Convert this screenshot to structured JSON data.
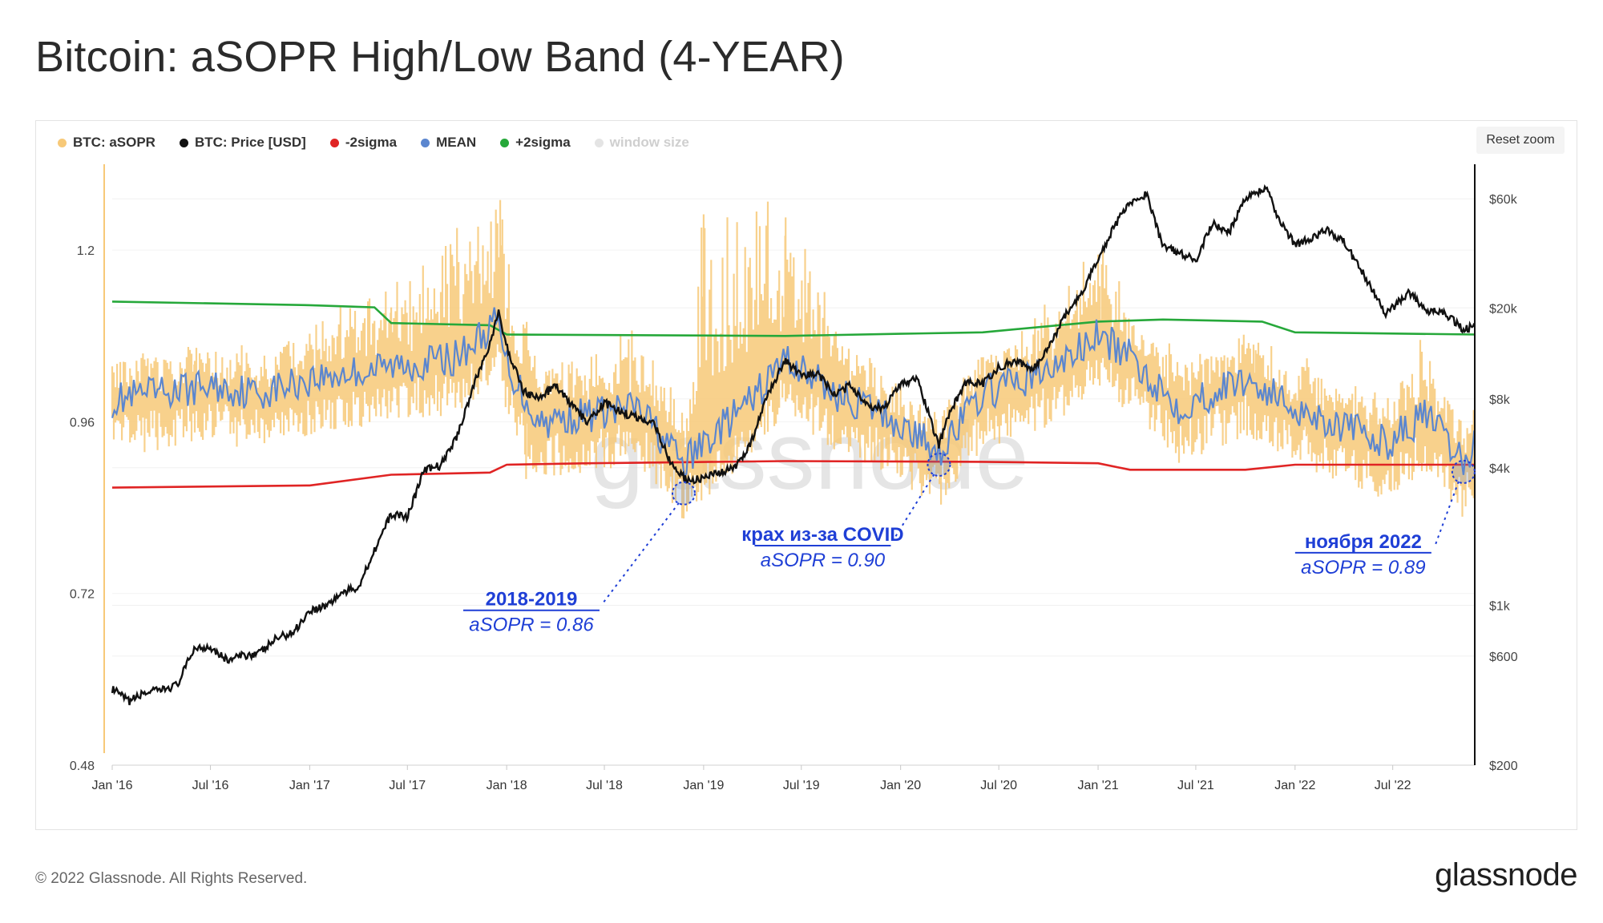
{
  "title": "Bitcoin: aSOPR High/Low Band (4-YEAR)",
  "toolbar": {
    "reset_zoom": "Reset zoom"
  },
  "legend": [
    {
      "label": "BTC: aSOPR",
      "color": "#f7c978",
      "enabled": true
    },
    {
      "label": "BTC: Price [USD]",
      "color": "#111111",
      "enabled": true
    },
    {
      "label": "-2sigma",
      "color": "#e02424",
      "enabled": true
    },
    {
      "label": "MEAN",
      "color": "#5b86cf",
      "enabled": true
    },
    {
      "label": "+2sigma",
      "color": "#26a83a",
      "enabled": true
    },
    {
      "label": "window size",
      "color": "#e4e4e4",
      "enabled": false
    }
  ],
  "watermark": "glassnode",
  "footer": {
    "copyright": "© 2022 Glassnode. All Rights Reserved.",
    "brand": "glassnode"
  },
  "chart_data": {
    "type": "line",
    "title": "Bitcoin: aSOPR High/Low Band (4-YEAR)",
    "x_ticks": [
      "Jan '16",
      "Jul '16",
      "Jan '17",
      "Jul '17",
      "Jan '18",
      "Jul '18",
      "Jan '19",
      "Jul '19",
      "Jan '20",
      "Jul '20",
      "Jan '21",
      "Jul '21",
      "Jan '22",
      "Jul '22"
    ],
    "x_tick_dates": [
      "2016-01-01",
      "2016-07-01",
      "2017-01-01",
      "2017-07-01",
      "2018-01-01",
      "2018-07-01",
      "2019-01-01",
      "2019-07-01",
      "2020-01-01",
      "2020-07-01",
      "2021-01-01",
      "2021-07-01",
      "2022-01-01",
      "2022-07-01"
    ],
    "x_range": [
      "2016-01-01",
      "2022-11-30"
    ],
    "left_axis": {
      "label": "aSOPR",
      "scale": "linear",
      "range": [
        0.48,
        1.32
      ],
      "ticks": [
        0.48,
        0.72,
        0.96,
        1.2
      ],
      "tick_labels": [
        "0.48",
        "0.72",
        "0.96",
        "1.2"
      ]
    },
    "right_axis": {
      "label": "Price [USD]",
      "scale": "log",
      "range": [
        200,
        85000
      ],
      "ticks": [
        200,
        600,
        1000,
        4000,
        8000,
        20000,
        60000
      ],
      "tick_labels": [
        "$200",
        "$600",
        "$1k",
        "$4k",
        "$8k",
        "$20k",
        "$60k"
      ]
    },
    "grid": true,
    "legend_position": "top-left",
    "series": [
      {
        "name": "BTC: Price [USD]",
        "axis": "right",
        "color": "#111111",
        "points": [
          [
            "2016-01-01",
            430
          ],
          [
            "2016-02-01",
            380
          ],
          [
            "2016-03-01",
            415
          ],
          [
            "2016-04-01",
            425
          ],
          [
            "2016-05-01",
            450
          ],
          [
            "2016-06-01",
            650
          ],
          [
            "2016-07-01",
            660
          ],
          [
            "2016-08-01",
            575
          ],
          [
            "2016-09-01",
            605
          ],
          [
            "2016-10-01",
            620
          ],
          [
            "2016-11-01",
            720
          ],
          [
            "2016-12-01",
            760
          ],
          [
            "2017-01-01",
            950
          ],
          [
            "2017-02-01",
            1000
          ],
          [
            "2017-03-01",
            1130
          ],
          [
            "2017-04-01",
            1200
          ],
          [
            "2017-05-01",
            1750
          ],
          [
            "2017-06-01",
            2500
          ],
          [
            "2017-07-01",
            2450
          ],
          [
            "2017-08-01",
            3900
          ],
          [
            "2017-09-01",
            4100
          ],
          [
            "2017-10-01",
            5500
          ],
          [
            "2017-11-01",
            9200
          ],
          [
            "2017-12-01",
            14000
          ],
          [
            "2017-12-17",
            19000
          ],
          [
            "2018-01-01",
            13500
          ],
          [
            "2018-02-01",
            8700
          ],
          [
            "2018-03-01",
            8000
          ],
          [
            "2018-04-01",
            9200
          ],
          [
            "2018-05-01",
            7500
          ],
          [
            "2018-06-01",
            6300
          ],
          [
            "2018-07-01",
            7700
          ],
          [
            "2018-08-01",
            7000
          ],
          [
            "2018-09-01",
            6600
          ],
          [
            "2018-10-01",
            6300
          ],
          [
            "2018-11-01",
            4200
          ],
          [
            "2018-12-01",
            3500
          ],
          [
            "2019-01-01",
            3600
          ],
          [
            "2019-02-01",
            3800
          ],
          [
            "2019-03-01",
            4000
          ],
          [
            "2019-04-01",
            5300
          ],
          [
            "2019-05-01",
            8500
          ],
          [
            "2019-06-01",
            11800
          ],
          [
            "2019-07-01",
            10000
          ],
          [
            "2019-08-01",
            10400
          ],
          [
            "2019-09-01",
            8300
          ],
          [
            "2019-10-01",
            9200
          ],
          [
            "2019-11-01",
            7500
          ],
          [
            "2019-12-01",
            7200
          ],
          [
            "2020-01-01",
            9400
          ],
          [
            "2020-02-01",
            9800
          ],
          [
            "2020-03-12",
            5000
          ],
          [
            "2020-04-01",
            7000
          ],
          [
            "2020-05-01",
            9400
          ],
          [
            "2020-06-01",
            9300
          ],
          [
            "2020-07-01",
            11000
          ],
          [
            "2020-08-01",
            11800
          ],
          [
            "2020-09-01",
            10700
          ],
          [
            "2020-10-01",
            13500
          ],
          [
            "2020-11-01",
            18500
          ],
          [
            "2020-12-01",
            23000
          ],
          [
            "2021-01-01",
            33000
          ],
          [
            "2021-02-01",
            46000
          ],
          [
            "2021-03-01",
            58000
          ],
          [
            "2021-04-01",
            63000
          ],
          [
            "2021-05-01",
            37000
          ],
          [
            "2021-06-01",
            35000
          ],
          [
            "2021-07-01",
            32000
          ],
          [
            "2021-08-01",
            47000
          ],
          [
            "2021-09-01",
            43000
          ],
          [
            "2021-10-01",
            61000
          ],
          [
            "2021-11-10",
            67000
          ],
          [
            "2021-12-01",
            49000
          ],
          [
            "2022-01-01",
            38000
          ],
          [
            "2022-02-01",
            40000
          ],
          [
            "2022-03-01",
            44000
          ],
          [
            "2022-04-01",
            39000
          ],
          [
            "2022-05-01",
            30000
          ],
          [
            "2022-06-18",
            19000
          ],
          [
            "2022-07-01",
            20000
          ],
          [
            "2022-08-01",
            23500
          ],
          [
            "2022-09-01",
            19500
          ],
          [
            "2022-10-01",
            19500
          ],
          [
            "2022-11-09",
            16000
          ],
          [
            "2022-11-30",
            16800
          ]
        ]
      },
      {
        "name": "+2sigma",
        "axis": "left",
        "color": "#26a83a",
        "points": [
          [
            "2016-01-01",
            1.128
          ],
          [
            "2017-01-01",
            1.123
          ],
          [
            "2017-05-01",
            1.12
          ],
          [
            "2017-06-01",
            1.098
          ],
          [
            "2017-12-01",
            1.095
          ],
          [
            "2018-01-01",
            1.082
          ],
          [
            "2019-06-01",
            1.08
          ],
          [
            "2020-01-01",
            1.083
          ],
          [
            "2020-06-01",
            1.085
          ],
          [
            "2021-01-01",
            1.1
          ],
          [
            "2021-05-01",
            1.103
          ],
          [
            "2021-11-01",
            1.1
          ],
          [
            "2022-01-01",
            1.085
          ],
          [
            "2022-11-30",
            1.082
          ]
        ]
      },
      {
        "name": "-2sigma",
        "axis": "left",
        "color": "#e02424",
        "points": [
          [
            "2016-01-01",
            0.868
          ],
          [
            "2017-01-01",
            0.871
          ],
          [
            "2017-06-01",
            0.886
          ],
          [
            "2017-12-01",
            0.889
          ],
          [
            "2018-01-01",
            0.9
          ],
          [
            "2018-06-01",
            0.902
          ],
          [
            "2019-06-01",
            0.905
          ],
          [
            "2020-06-01",
            0.904
          ],
          [
            "2021-01-01",
            0.902
          ],
          [
            "2021-03-01",
            0.893
          ],
          [
            "2021-10-01",
            0.893
          ],
          [
            "2022-01-01",
            0.9
          ],
          [
            "2022-11-30",
            0.9
          ]
        ]
      },
      {
        "name": "MEAN",
        "axis": "left",
        "color": "#5b86cf",
        "points": [
          [
            "2016-01-01",
            0.99
          ],
          [
            "2016-04-01",
            1.0
          ],
          [
            "2016-07-01",
            1.01
          ],
          [
            "2016-10-01",
            1.0
          ],
          [
            "2017-01-01",
            1.02
          ],
          [
            "2017-04-01",
            1.03
          ],
          [
            "2017-07-01",
            1.04
          ],
          [
            "2017-10-01",
            1.05
          ],
          [
            "2017-12-15",
            1.1
          ],
          [
            "2018-01-01",
            1.04
          ],
          [
            "2018-03-01",
            0.96
          ],
          [
            "2018-06-01",
            0.97
          ],
          [
            "2018-09-01",
            0.98
          ],
          [
            "2018-11-25",
            0.9
          ],
          [
            "2019-01-01",
            0.93
          ],
          [
            "2019-04-01",
            0.99
          ],
          [
            "2019-06-01",
            1.05
          ],
          [
            "2019-09-01",
            1.0
          ],
          [
            "2019-12-01",
            0.97
          ],
          [
            "2020-03-12",
            0.92
          ],
          [
            "2020-06-01",
            1.0
          ],
          [
            "2020-10-01",
            1.03
          ],
          [
            "2021-01-01",
            1.08
          ],
          [
            "2021-03-01",
            1.05
          ],
          [
            "2021-06-01",
            0.98
          ],
          [
            "2021-10-01",
            1.02
          ],
          [
            "2022-01-01",
            0.98
          ],
          [
            "2022-06-18",
            0.93
          ],
          [
            "2022-09-01",
            0.97
          ],
          [
            "2022-11-09",
            0.9
          ],
          [
            "2022-11-30",
            0.93
          ]
        ]
      },
      {
        "name": "BTC: aSOPR",
        "axis": "left",
        "color": "#f7c978",
        "points": [
          [
            "2016-01-01",
            0.99
          ],
          [
            "2016-03-01",
            0.97
          ],
          [
            "2016-06-01",
            1.04
          ],
          [
            "2016-09-01",
            0.98
          ],
          [
            "2017-01-01",
            1.06
          ],
          [
            "2017-06-01",
            1.12
          ],
          [
            "2017-12-20",
            1.27
          ],
          [
            "2018-02-06",
            0.88
          ],
          [
            "2018-06-01",
            0.93
          ],
          [
            "2018-11-25",
            0.86
          ],
          [
            "2019-01-01",
            1.25
          ],
          [
            "2019-06-01",
            1.22
          ],
          [
            "2019-09-01",
            1.08
          ],
          [
            "2020-03-12",
            0.9
          ],
          [
            "2020-10-01",
            1.09
          ],
          [
            "2021-01-08",
            1.18
          ],
          [
            "2021-05-19",
            0.93
          ],
          [
            "2021-10-20",
            1.06
          ],
          [
            "2022-01-22",
            0.94
          ],
          [
            "2022-06-18",
            0.91
          ],
          [
            "2022-11-09",
            0.89
          ]
        ]
      }
    ],
    "annotations": [
      {
        "title": "2018-2019",
        "subtitle": "aSOPR = 0.86",
        "date": "2018-11-25",
        "value": 0.86
      },
      {
        "title": "крах из-за COVID",
        "subtitle": "aSOPR = 0.90",
        "date": "2020-03-12",
        "value": 0.9
      },
      {
        "title": "ноября 2022",
        "subtitle": "aSOPR = 0.89",
        "date": "2022-11-09",
        "value": 0.89
      }
    ]
  }
}
